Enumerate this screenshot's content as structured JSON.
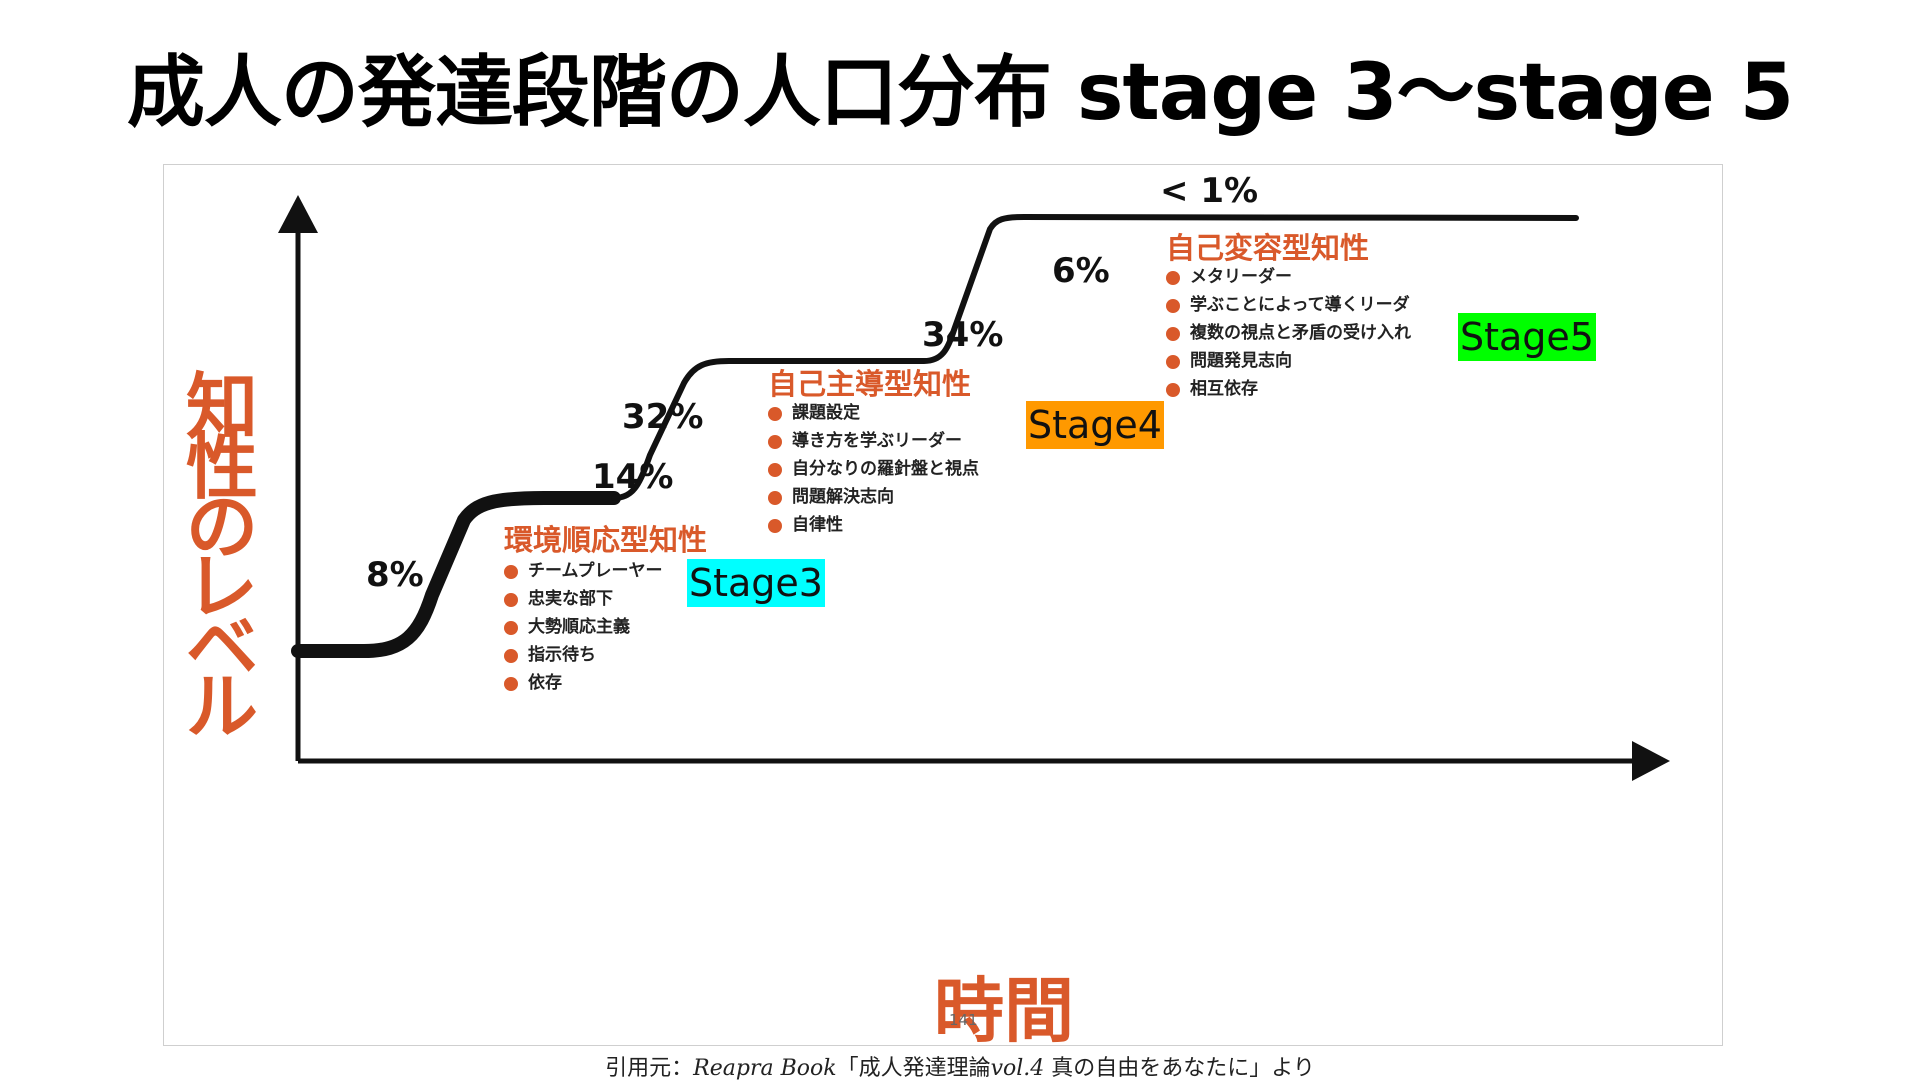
{
  "slide": {
    "title": "成人の発達段階の人口分布 stage 3〜stage 5"
  },
  "figure": {
    "y_axis_chars": [
      "知",
      "性",
      "の",
      "レ",
      "ベ",
      "ル"
    ],
    "x_axis_label": "時間",
    "percentages": {
      "p8": "8%",
      "p14": "14%",
      "p32": "32%",
      "p34": "34%",
      "p6": "6%",
      "p1": "< 1%"
    },
    "stages": [
      {
        "heading": "環境順応型知性",
        "tag": "Stage3",
        "tag_color": "#00ffff",
        "bullets": [
          "チームプレーヤー",
          "忠実な部下",
          "大勢順応主義",
          "指示待ち",
          "依存"
        ]
      },
      {
        "heading": "自己主導型知性",
        "tag": "Stage4",
        "tag_color": "#ff9900",
        "bullets": [
          "課題設定",
          "導き方を学ぶリーダー",
          "自分なりの羅針盤と視点",
          "問題解決志向",
          "自律性"
        ]
      },
      {
        "heading": "自己変容型知性",
        "tag": "Stage5",
        "tag_color": "#00ff00",
        "bullets": [
          "メタリーダー",
          "学ぶことによって導くリーダ",
          "複数の視点と矛盾の受け入れ",
          "問題発見志向",
          "相互依存"
        ]
      }
    ],
    "page_number": "141",
    "accent_color": "#d9592a"
  },
  "citation": {
    "prefix": "引用元：",
    "book": "Reapra Book",
    "open": "「成人発達理論",
    "vol": "vol.4",
    "rest": " 真の自由をあなたに」より"
  }
}
